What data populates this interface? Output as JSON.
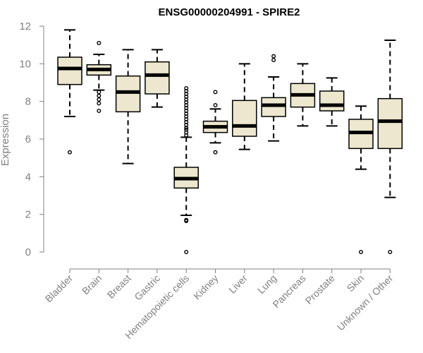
{
  "chart_data": {
    "type": "boxplot",
    "title": "ENSG00000204991 - SPIRE2",
    "xlabel": "",
    "ylabel": "Expression",
    "ylim": [
      0,
      12
    ],
    "yticks": [
      "0",
      "2",
      "4",
      "6",
      "8",
      "10",
      "12"
    ],
    "categories": [
      "Bladder",
      "Brain",
      "Breast",
      "Gastric",
      "Hematopoietic cells",
      "Kidney",
      "Liver",
      "Lung",
      "Pancreas",
      "Prostate",
      "Skin",
      "Unknown / Other"
    ],
    "boxes": [
      {
        "min": 7.2,
        "q1": 8.9,
        "median": 9.75,
        "q3": 10.35,
        "max": 11.8,
        "outliers": [
          5.3
        ]
      },
      {
        "min": 8.6,
        "q1": 9.4,
        "median": 9.7,
        "q3": 9.95,
        "max": 10.5,
        "outliers": [
          11.1,
          8.5,
          8.3,
          8.1,
          7.9,
          7.5
        ]
      },
      {
        "min": 4.7,
        "q1": 7.45,
        "median": 8.5,
        "q3": 9.35,
        "max": 10.75,
        "outliers": []
      },
      {
        "min": 7.7,
        "q1": 8.4,
        "median": 9.4,
        "q3": 10.1,
        "max": 10.75,
        "outliers": []
      },
      {
        "min": 1.95,
        "q1": 3.4,
        "median": 3.9,
        "q3": 4.5,
        "max": 6.1,
        "outliers": [
          0,
          1.65,
          1.7,
          6.2,
          6.35,
          6.5,
          6.6,
          6.75,
          6.9,
          7.05,
          7.2,
          7.35,
          7.5,
          7.65,
          7.8,
          7.95,
          8.1,
          8.25,
          8.4,
          8.55,
          8.7
        ]
      },
      {
        "min": 5.8,
        "q1": 6.35,
        "median": 6.65,
        "q3": 6.95,
        "max": 7.6,
        "outliers": [
          8.5,
          7.8,
          5.3
        ]
      },
      {
        "min": 5.45,
        "q1": 6.15,
        "median": 6.7,
        "q3": 8.05,
        "max": 10.0,
        "outliers": []
      },
      {
        "min": 5.9,
        "q1": 7.2,
        "median": 7.8,
        "q3": 8.2,
        "max": 9.3,
        "outliers": [
          10.4,
          10.2
        ]
      },
      {
        "min": 6.7,
        "q1": 7.7,
        "median": 8.35,
        "q3": 8.95,
        "max": 10.0,
        "outliers": []
      },
      {
        "min": 6.7,
        "q1": 7.5,
        "median": 7.8,
        "q3": 8.55,
        "max": 9.25,
        "outliers": []
      },
      {
        "min": 4.4,
        "q1": 5.5,
        "median": 6.35,
        "q3": 7.05,
        "max": 7.75,
        "outliers": [
          0
        ]
      },
      {
        "min": 2.9,
        "q1": 5.5,
        "median": 6.95,
        "q3": 8.15,
        "max": 11.25,
        "outliers": [
          0
        ]
      }
    ],
    "box_fill": "#ede7cf",
    "box_stroke": "#000000",
    "axis_color": "#808080"
  }
}
